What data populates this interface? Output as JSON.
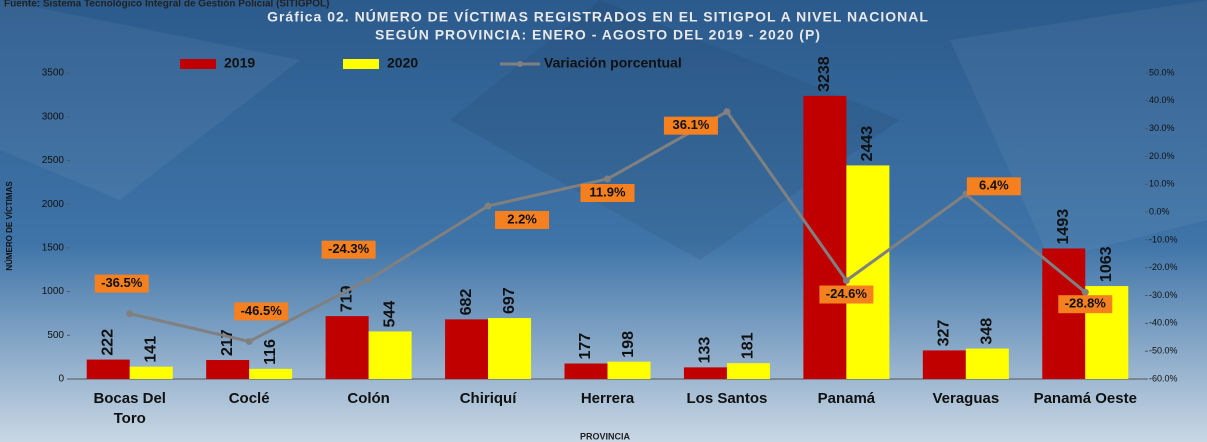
{
  "chart_data": {
    "type": "bar",
    "source": "Fuente: Sistema Tecnológico Integral de Gestión Policial (SITIGPOL)",
    "title": "Gráfica 02. NÚMERO DE VÍCTIMAS REGISTRADOS EN EL SITIGPOL A NIVEL NACIONAL",
    "subtitle": "SEGÚN PROVINCIA: ENERO - AGOSTO DEL 2019 - 2020 (P)",
    "x_label": "PROVINCIA",
    "y_label": "NÚMERO DE VÍCTIMAS",
    "categories": [
      "Bocas Del Toro",
      "Coclé",
      "Colón",
      "Chiriquí",
      "Herrera",
      "Los Santos",
      "Panamá",
      "Veraguas",
      "Panamá Oeste"
    ],
    "series": [
      {
        "name": "2019",
        "color": "#c00000",
        "values": [
          222,
          217,
          719,
          682,
          177,
          133,
          3238,
          327,
          1493
        ]
      },
      {
        "name": "2020",
        "color": "#ffff00",
        "values": [
          141,
          116,
          544,
          697,
          198,
          181,
          2443,
          348,
          1063
        ]
      },
      {
        "name": "Variación porcentual",
        "type": "line",
        "axis": "y2",
        "color": "#808080",
        "values": [
          -36.5,
          -46.5,
          -24.3,
          2.2,
          11.9,
          36.1,
          -24.6,
          6.4,
          -28.8
        ],
        "value_labels": [
          "-36.5%",
          "-46.5%",
          "-24.3%",
          "2.2%",
          "11.9%",
          "36.1%",
          "-24.6%",
          "6.4%",
          "-28.8%"
        ]
      }
    ],
    "ylim": [
      0,
      3500
    ],
    "yticks": [
      0,
      500,
      1000,
      1500,
      2000,
      2500,
      3000,
      3500
    ],
    "y2lim": [
      -60,
      50
    ],
    "y2ticks": [
      {
        "value": -60,
        "label": "-60.0%"
      },
      {
        "value": -50,
        "label": "-50.0%"
      },
      {
        "value": -40,
        "label": "-40.0%"
      },
      {
        "value": -30,
        "label": "-30.0%"
      },
      {
        "value": -20,
        "label": "-20.0%"
      },
      {
        "value": -10,
        "label": "-10.0%"
      },
      {
        "value": 0,
        "label": "0.0%"
      },
      {
        "value": 10,
        "label": "10.0%"
      },
      {
        "value": 20,
        "label": "20.0%"
      },
      {
        "value": 30,
        "label": "30.0%"
      },
      {
        "value": 40,
        "label": "40.0%"
      },
      {
        "value": 50,
        "label": "50.0%"
      }
    ],
    "grid": false
  }
}
